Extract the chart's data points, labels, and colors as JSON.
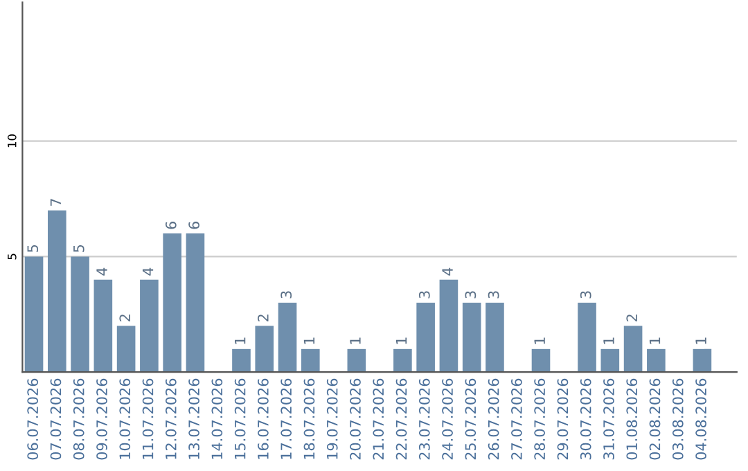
{
  "chart_data": {
    "type": "bar",
    "categories": [
      "06.07.2026",
      "07.07.2026",
      "08.07.2026",
      "09.07.2026",
      "10.07.2026",
      "11.07.2026",
      "12.07.2026",
      "13.07.2026",
      "14.07.2026",
      "15.07.2026",
      "16.07.2026",
      "17.07.2026",
      "18.07.2026",
      "19.07.2026",
      "20.07.2026",
      "21.07.2026",
      "22.07.2026",
      "23.07.2026",
      "24.07.2026",
      "25.07.2026",
      "26.07.2026",
      "27.07.2026",
      "28.07.2026",
      "29.07.2026",
      "30.07.2026",
      "31.07.2026",
      "01.08.2026",
      "02.08.2026",
      "03.08.2026",
      "04.08.2026"
    ],
    "values": [
      5,
      7,
      5,
      4,
      2,
      4,
      6,
      6,
      null,
      1,
      2,
      3,
      1,
      null,
      1,
      null,
      1,
      3,
      4,
      3,
      3,
      null,
      1,
      null,
      3,
      1,
      2,
      1,
      null,
      1
    ],
    "color": "#6f8fad",
    "ylim": [
      0,
      16
    ],
    "yticks": [
      5,
      10
    ],
    "grid": "y",
    "data_labels": true
  }
}
